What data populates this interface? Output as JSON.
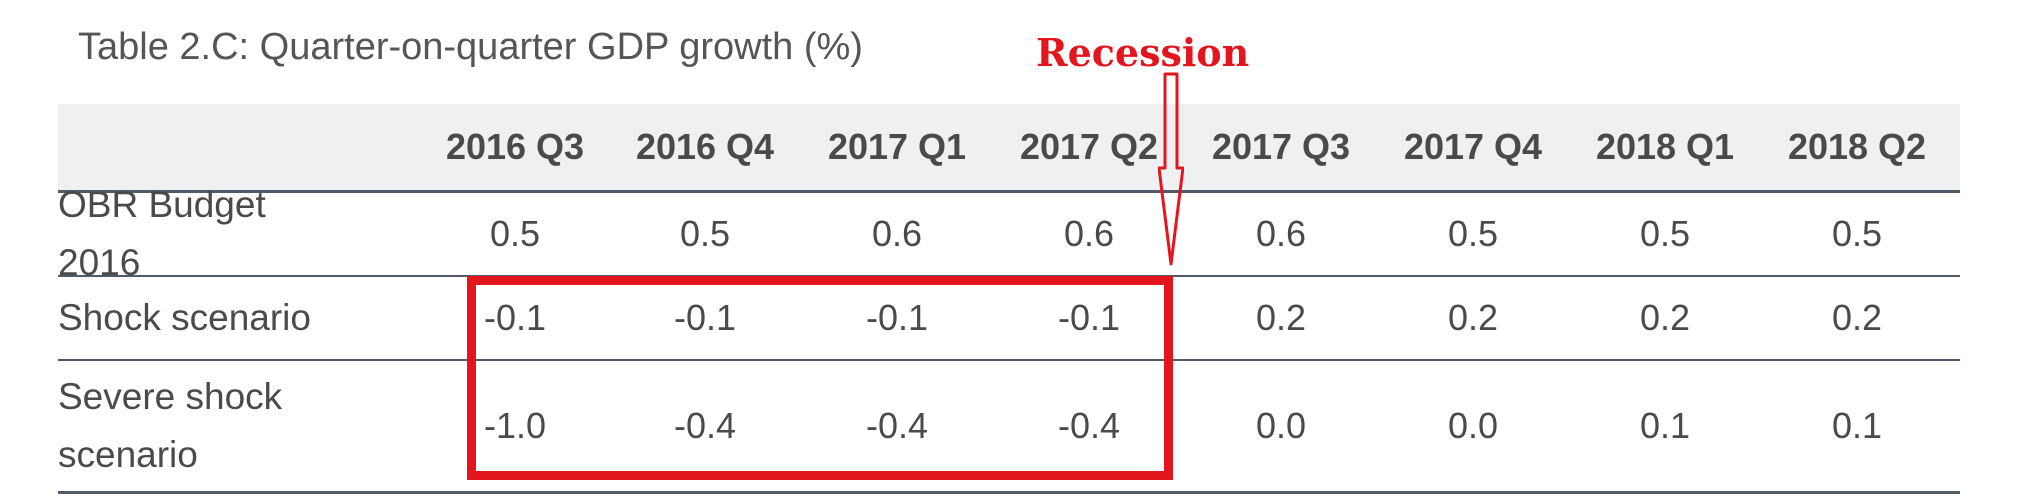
{
  "caption": "Table 2.C: Quarter-on-quarter GDP growth (%)",
  "annotation": {
    "label": "Recession",
    "color": "#e3161d"
  },
  "table": {
    "headers": [
      "2016 Q3",
      "2016 Q4",
      "2017 Q1",
      "2017 Q2",
      "2017 Q3",
      "2017 Q4",
      "2018 Q1",
      "2018 Q2"
    ],
    "rows": [
      {
        "label": "OBR Budget 2016",
        "values": [
          "0.5",
          "0.5",
          "0.6",
          "0.6",
          "0.6",
          "0.5",
          "0.5",
          "0.5"
        ]
      },
      {
        "label": "Shock scenario",
        "values": [
          "-0.1",
          "-0.1",
          "-0.1",
          "-0.1",
          "0.2",
          "0.2",
          "0.2",
          "0.2"
        ]
      },
      {
        "label": "Severe shock scenario",
        "values": [
          "-1.0",
          "-0.4",
          "-0.4",
          "-0.4",
          "0.0",
          "0.0",
          "0.1",
          "0.1"
        ]
      }
    ]
  }
}
